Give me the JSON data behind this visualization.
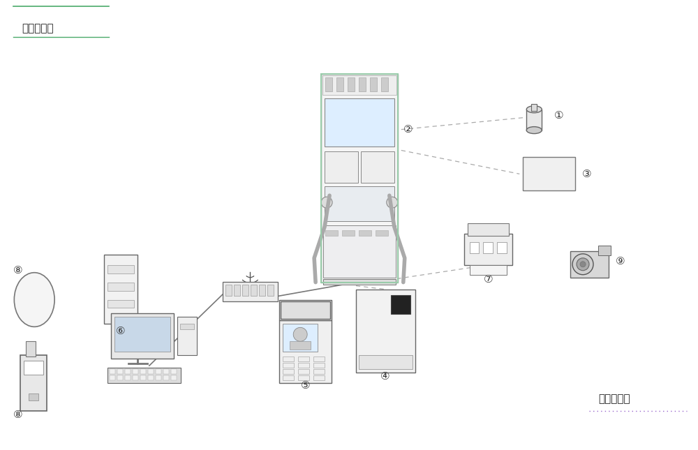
{
  "bg_color": "#ffffff",
  "title_inlet": "加气站进口",
  "title_outlet": "加气站出口",
  "label1": "①",
  "label2": "②",
  "label3": "③",
  "label4": "④",
  "label5": "⑤",
  "label6": "⑥",
  "label7": "⑦",
  "label8": "⑧",
  "label9": "⑨",
  "line_color": "#666666",
  "dashed_color": "#999999",
  "inlet_green": "#4aaa6a",
  "outlet_purple": "#9966cc"
}
